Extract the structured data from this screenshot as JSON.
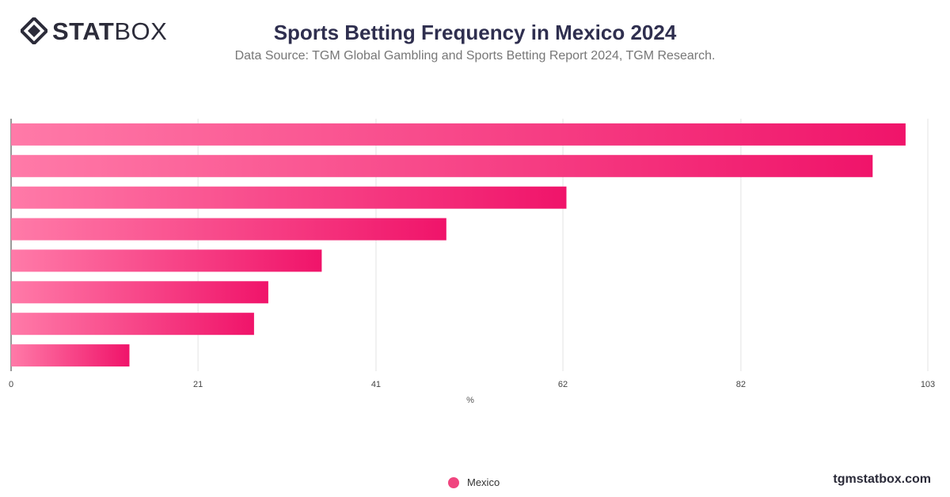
{
  "header": {
    "logo_text_bold": "STAT",
    "logo_text_light": "BOX",
    "title": "Sports Betting Frequency in Mexico 2024",
    "subtitle": "Data Source: TGM Global Gambling and Sports Betting Report 2024, TGM Research."
  },
  "footer": {
    "watermark": "tgmstatbox.com"
  },
  "legend": {
    "label": "Mexico",
    "color": "#f0457f"
  },
  "colors": {
    "bar_start": "#ff7aa8",
    "bar_end": "#f0146a",
    "grid": "#e3e3e3",
    "axis": "#333333"
  },
  "chart_data": {
    "type": "bar",
    "orientation": "horizontal",
    "title": "Sports Betting Frequency in Mexico 2024",
    "xlabel": "%",
    "ylabel": "",
    "xlim": [
      0,
      103
    ],
    "xticks": [
      0,
      21,
      41,
      62,
      82,
      103
    ],
    "grid": true,
    "legend_position": "bottom",
    "series": [
      {
        "name": "Mexico",
        "values": [
          100.5,
          96.8,
          62.4,
          48.9,
          34.9,
          28.9,
          27.3,
          13.3
        ]
      }
    ]
  }
}
